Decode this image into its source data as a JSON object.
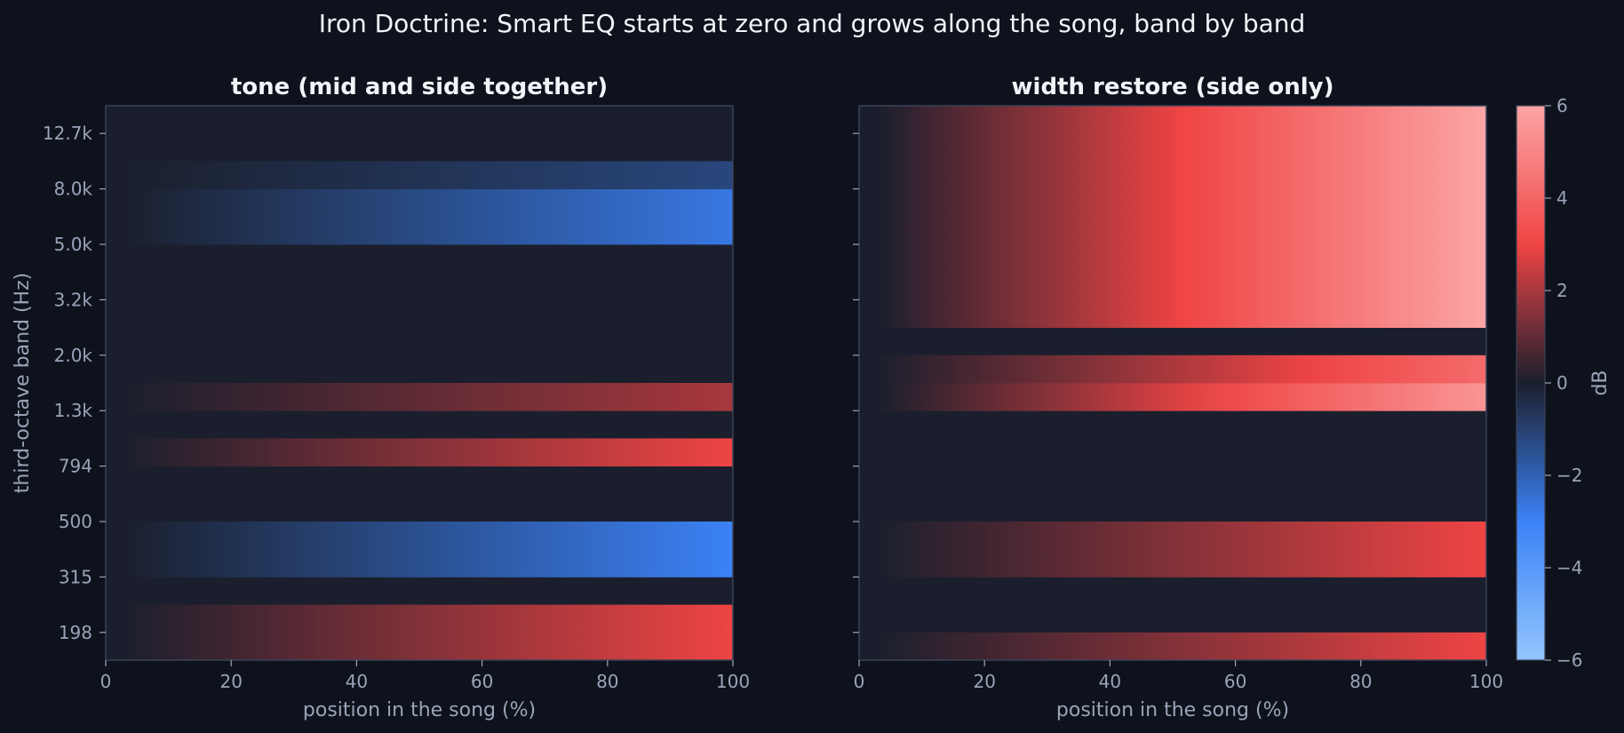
{
  "title": "Iron Doctrine: Smart EQ starts at zero and grows along the song, band by band",
  "colors": {
    "background": "#0e121c",
    "panel": "#1b1f2d",
    "frame": "#3a4256",
    "tick_text": "#9aa4b8",
    "label_text": "#9aa4b8",
    "title_text": "#f2f4f8",
    "cmap_stops": [
      {
        "v": -6,
        "c": "#93c5fd"
      },
      {
        "v": -3,
        "c": "#3b82f6"
      },
      {
        "v": 0,
        "c": "#1b1f2d"
      },
      {
        "v": 3,
        "c": "#ef4444"
      },
      {
        "v": 6,
        "c": "#fca5a5"
      }
    ]
  },
  "colorbar": {
    "label": "dB",
    "ticks": [
      6,
      4,
      2,
      0,
      -2,
      -4,
      -6
    ],
    "vmin": -6,
    "vmax": 6
  },
  "chart_data": [
    {
      "type": "heatmap",
      "title": "tone (mid and side together)",
      "xlabel": "position in the song (%)",
      "ylabel": "third-octave band (Hz)",
      "xlim": [
        0,
        100
      ],
      "x_ticks": [
        "0",
        "20",
        "40",
        "60",
        "80",
        "100"
      ],
      "y_tick_labels": [
        "198",
        "315",
        "500",
        "794",
        "1.3k",
        "2.0k",
        "3.2k",
        "5.0k",
        "8.0k",
        "12.7k"
      ],
      "bands": [
        {
          "row": 0,
          "end_db": 3.0,
          "start": 3
        },
        {
          "row": 1,
          "end_db": 3.0,
          "start": 3
        },
        {
          "row": 2,
          "end_db": 0,
          "start": 3
        },
        {
          "row": 3,
          "end_db": -3.0,
          "start": 3
        },
        {
          "row": 4,
          "end_db": -3.0,
          "start": 3
        },
        {
          "row": 5,
          "end_db": 0,
          "start": 3
        },
        {
          "row": 6,
          "end_db": 0,
          "start": 3
        },
        {
          "row": 7,
          "end_db": 3.0,
          "start": 3
        },
        {
          "row": 8,
          "end_db": 0,
          "start": 3
        },
        {
          "row": 9,
          "end_db": 2.0,
          "start": 3
        },
        {
          "row": 10,
          "end_db": 0,
          "start": 3
        },
        {
          "row": 11,
          "end_db": 0,
          "start": 3
        },
        {
          "row": 12,
          "end_db": 0,
          "start": 3
        },
        {
          "row": 13,
          "end_db": 0,
          "start": 3
        },
        {
          "row": 14,
          "end_db": 0,
          "start": 3
        },
        {
          "row": 15,
          "end_db": -2.7,
          "start": 3
        },
        {
          "row": 16,
          "end_db": -2.7,
          "start": 3
        },
        {
          "row": 17,
          "end_db": -1.2,
          "start": 3
        },
        {
          "row": 18,
          "end_db": 0,
          "start": 3
        },
        {
          "row": 19,
          "end_db": 0,
          "start": 3
        }
      ]
    },
    {
      "type": "heatmap",
      "title": "width restore (side only)",
      "xlabel": "position in the song (%)",
      "ylabel": "",
      "xlim": [
        0,
        100
      ],
      "x_ticks": [
        "0",
        "20",
        "40",
        "60",
        "80",
        "100"
      ],
      "y_tick_labels": [],
      "bands": [
        {
          "row": 0,
          "end_db": 3.0,
          "start": 3
        },
        {
          "row": 1,
          "end_db": 0,
          "start": 3
        },
        {
          "row": 2,
          "end_db": 0,
          "start": 3
        },
        {
          "row": 3,
          "end_db": 3.0,
          "start": 3
        },
        {
          "row": 4,
          "end_db": 3.0,
          "start": 3
        },
        {
          "row": 5,
          "end_db": 0,
          "start": 3
        },
        {
          "row": 6,
          "end_db": 0,
          "start": 3
        },
        {
          "row": 7,
          "end_db": 0,
          "start": 3
        },
        {
          "row": 8,
          "end_db": 0,
          "start": 3
        },
        {
          "row": 9,
          "end_db": 5.5,
          "start": 3
        },
        {
          "row": 10,
          "end_db": 4.2,
          "start": 3
        },
        {
          "row": 11,
          "end_db": 0,
          "start": 3
        },
        {
          "row": 12,
          "end_db": 6.0,
          "start": 3
        },
        {
          "row": 13,
          "end_db": 6.0,
          "start": 3
        },
        {
          "row": 14,
          "end_db": 6.0,
          "start": 3
        },
        {
          "row": 15,
          "end_db": 6.0,
          "start": 3
        },
        {
          "row": 16,
          "end_db": 6.0,
          "start": 3
        },
        {
          "row": 17,
          "end_db": 6.0,
          "start": 3
        },
        {
          "row": 18,
          "end_db": 6.0,
          "start": 3
        },
        {
          "row": 19,
          "end_db": 6.0,
          "start": 3
        }
      ]
    }
  ]
}
